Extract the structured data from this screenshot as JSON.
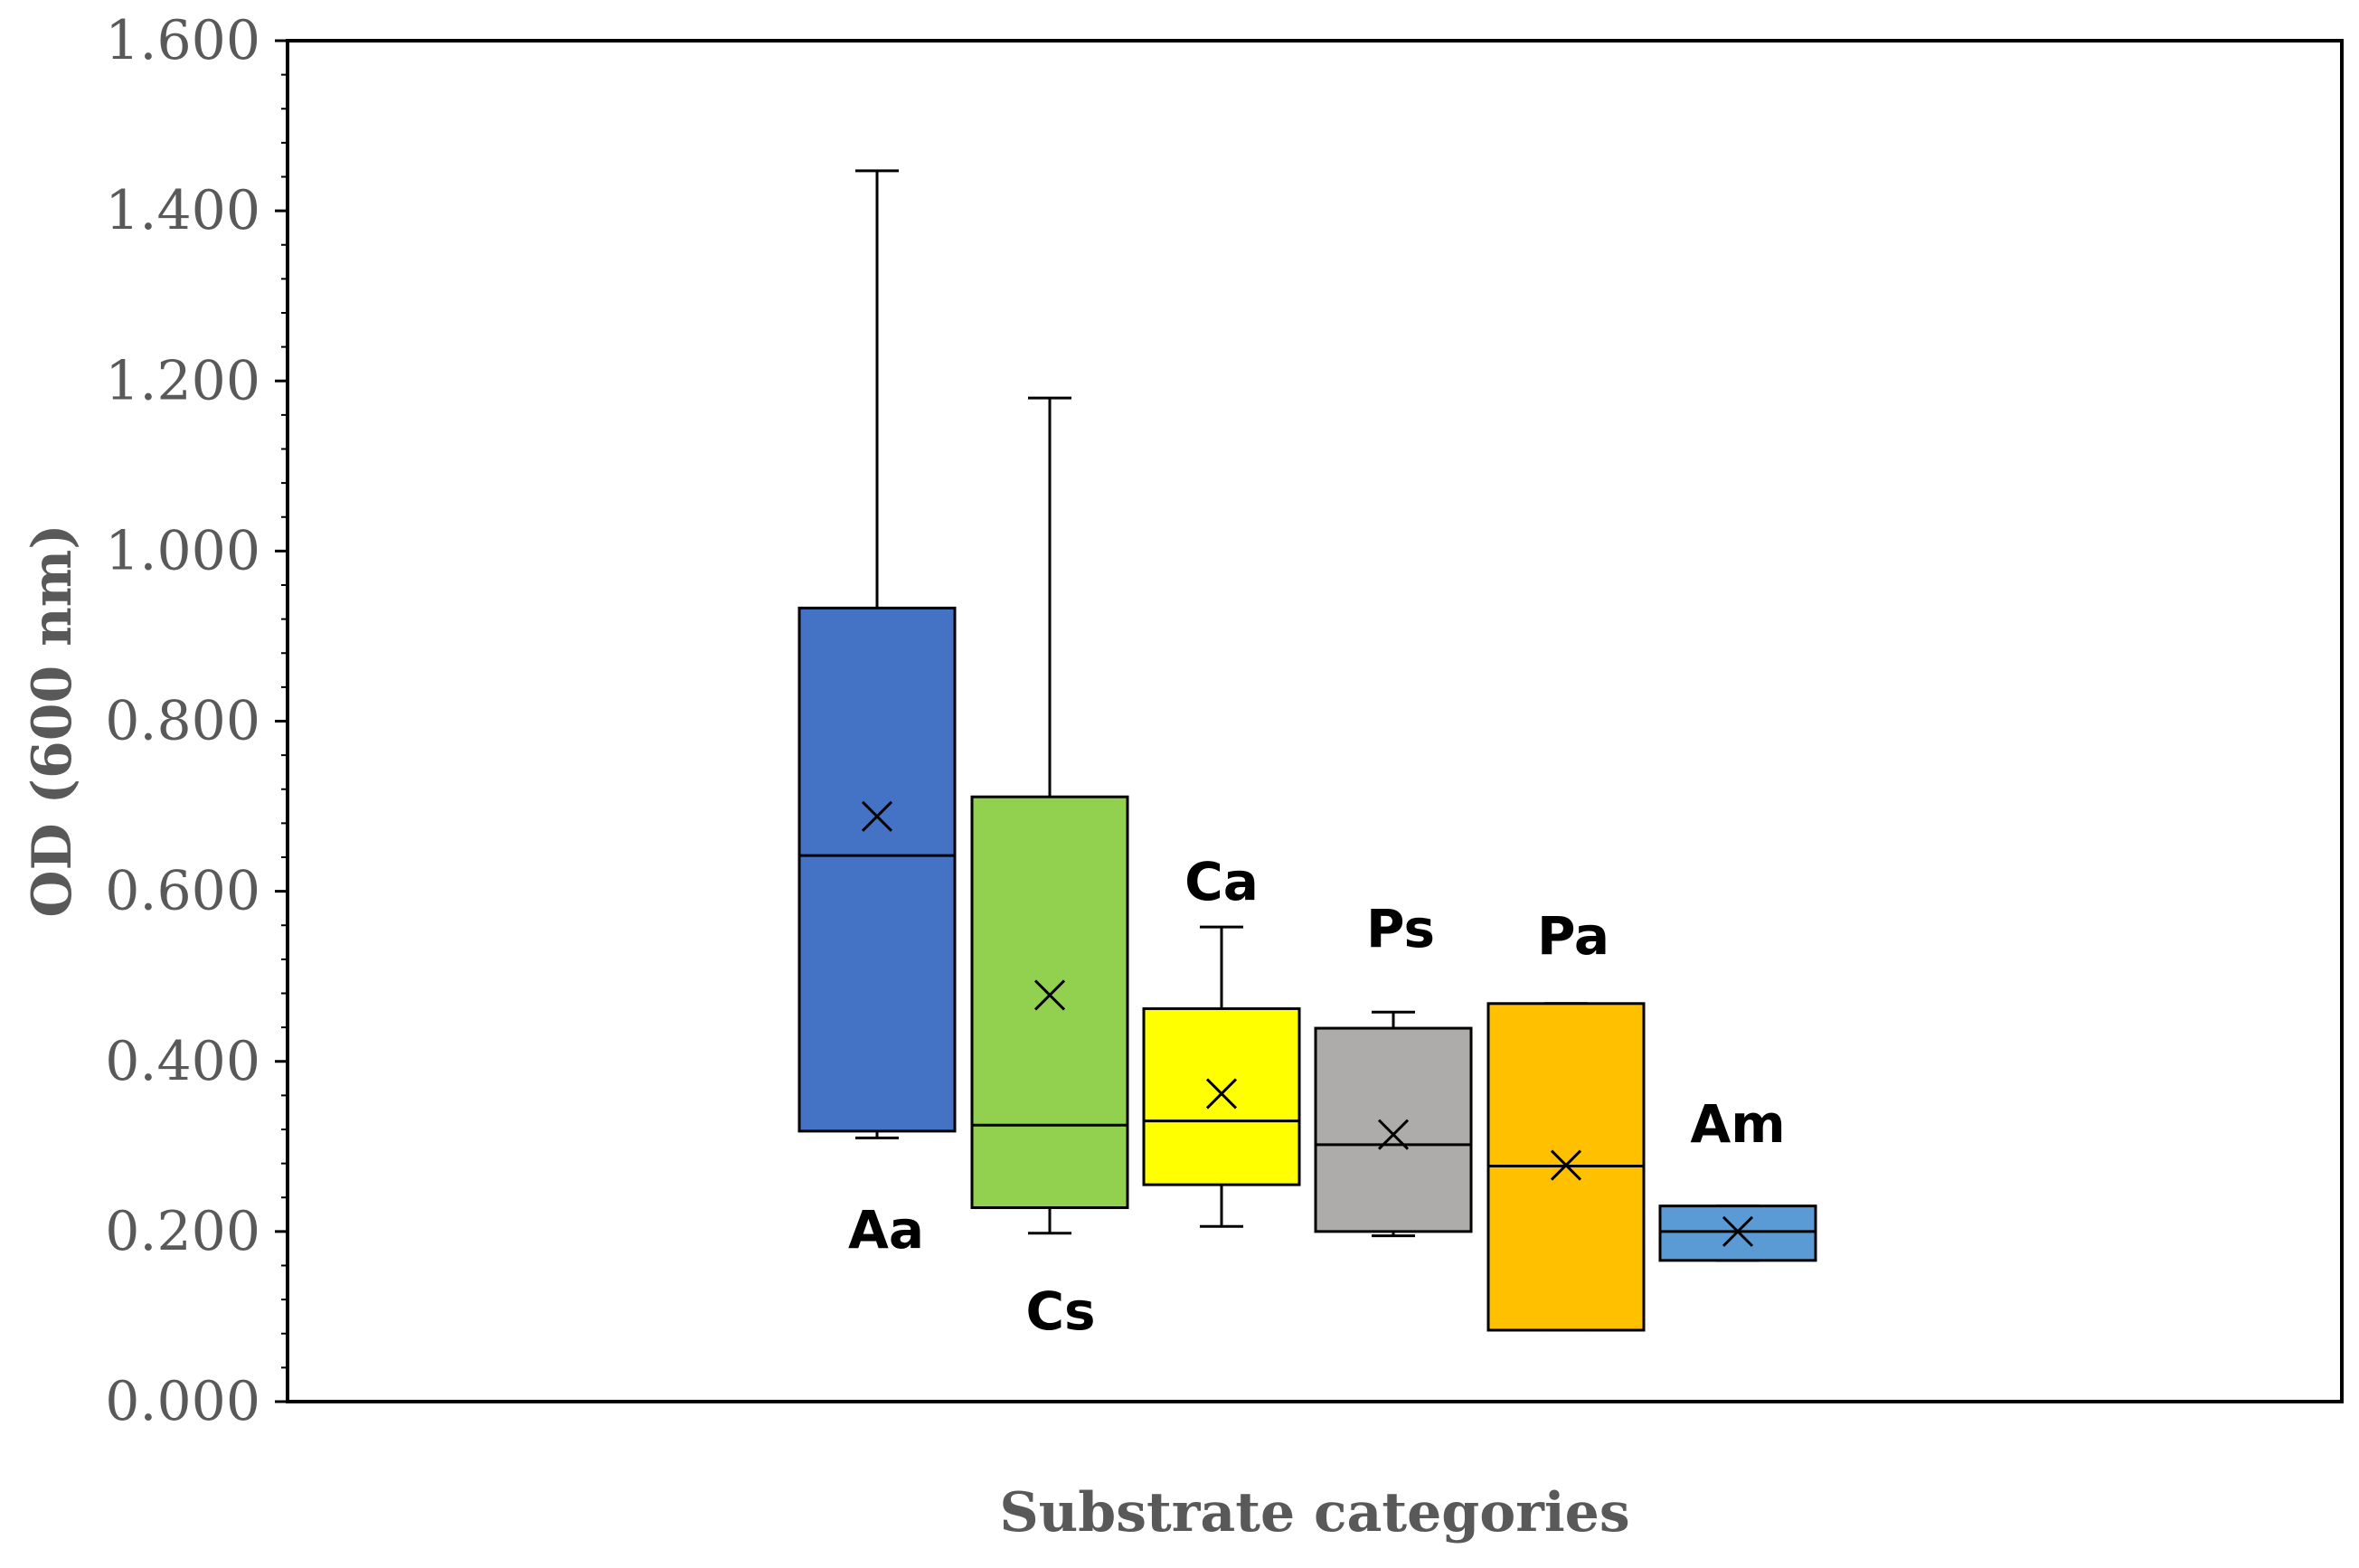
{
  "chart_data": {
    "type": "boxplot",
    "title": "",
    "xlabel": "Substrate categories",
    "ylabel": "OD (600 nm)",
    "ylim": [
      0,
      1.6
    ],
    "yticks": [
      "0.000",
      "0.200",
      "0.400",
      "0.600",
      "0.800",
      "1.000",
      "1.200",
      "1.400",
      "1.600"
    ],
    "grid": false,
    "series": [
      {
        "name": "Aa",
        "color": "#4472C4",
        "min": 0.31,
        "q1": 0.318,
        "median": 0.642,
        "q3": 0.933,
        "max": 1.447,
        "mean": 0.688
      },
      {
        "name": "Cs",
        "color": "#92D050",
        "min": 0.198,
        "q1": 0.228,
        "median": 0.325,
        "q3": 0.711,
        "max": 1.18,
        "mean": 0.478
      },
      {
        "name": "Ca",
        "color": "#FFFF00",
        "min": 0.206,
        "q1": 0.255,
        "median": 0.33,
        "q3": 0.462,
        "max": 0.558,
        "mean": 0.362
      },
      {
        "name": "Ps",
        "color": "#AEABAB",
        "min": 0.195,
        "q1": 0.2,
        "median": 0.302,
        "q3": 0.439,
        "max": 0.458,
        "mean": 0.314
      },
      {
        "name": "Pa",
        "color": "#FFC000",
        "min": 0.084,
        "q1": 0.084,
        "median": 0.277,
        "q3": 0.468,
        "max": 0.468,
        "mean": 0.278
      },
      {
        "name": "Am",
        "color": "#5B9BD5",
        "min": 0.166,
        "q1": 0.166,
        "median": 0.2,
        "q3": 0.23,
        "max": 0.23,
        "mean": 0.2
      }
    ]
  }
}
